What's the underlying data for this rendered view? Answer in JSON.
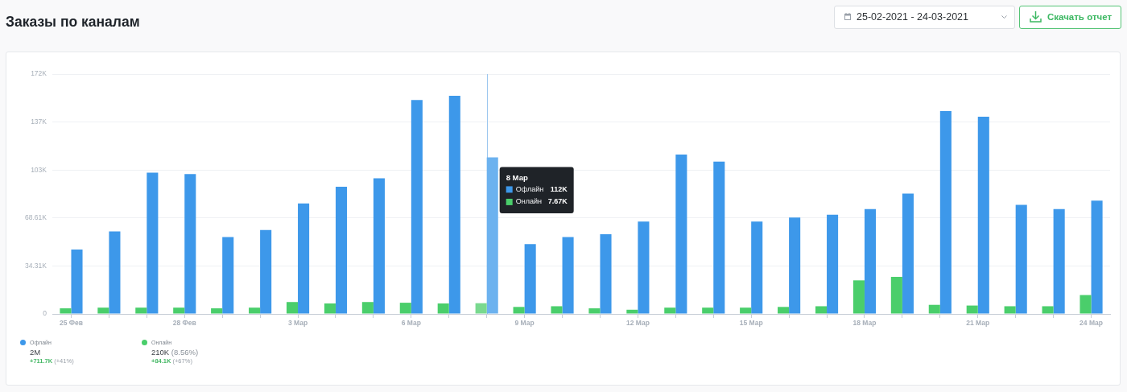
{
  "chart_data": {
    "type": "bar",
    "title": "Заказы по каналам",
    "x": [
      "2021-02-25",
      "2021-02-26",
      "2021-02-27",
      "2021-02-28",
      "2021-03-01",
      "2021-03-02",
      "2021-03-03",
      "2021-03-04",
      "2021-03-05",
      "2021-03-06",
      "2021-03-07",
      "2021-03-08",
      "2021-03-09",
      "2021-03-10",
      "2021-03-11",
      "2021-03-12",
      "2021-03-13",
      "2021-03-14",
      "2021-03-15",
      "2021-03-16",
      "2021-03-17",
      "2021-03-18",
      "2021-03-19",
      "2021-03-20",
      "2021-03-21",
      "2021-03-22",
      "2021-03-23",
      "2021-03-24"
    ],
    "xlim": [
      "2021-02-24T12:00",
      "2021-03-24T12:00"
    ],
    "xticks": [
      {
        "value": "2021-02-25",
        "label": "25 Фев"
      },
      {
        "value": "2021-02-26",
        "label": null
      },
      {
        "value": "2021-02-27",
        "label": null
      },
      {
        "value": "2021-02-28",
        "label": "28 Фев"
      },
      {
        "value": "2021-03-01",
        "label": null
      },
      {
        "value": "2021-03-02",
        "label": null
      },
      {
        "value": "2021-03-03",
        "label": "3 Мар"
      },
      {
        "value": "2021-03-04",
        "label": null
      },
      {
        "value": "2021-03-05",
        "label": null
      },
      {
        "value": "2021-03-06",
        "label": "6 Мар"
      },
      {
        "value": "2021-03-07",
        "label": null
      },
      {
        "value": "2021-03-08",
        "label": null
      },
      {
        "value": "2021-03-09",
        "label": "9 Мар"
      },
      {
        "value": "2021-03-10",
        "label": null
      },
      {
        "value": "2021-03-11",
        "label": null
      },
      {
        "value": "2021-03-12",
        "label": "12 Мар"
      },
      {
        "value": "2021-03-13",
        "label": null
      },
      {
        "value": "2021-03-14",
        "label": null
      },
      {
        "value": "2021-03-15",
        "label": "15 Мар"
      },
      {
        "value": "2021-03-16",
        "label": null
      },
      {
        "value": "2021-03-17",
        "label": null
      },
      {
        "value": "2021-03-18",
        "label": "18 Мар"
      },
      {
        "value": "2021-03-19",
        "label": null
      },
      {
        "value": "2021-03-20",
        "label": null
      },
      {
        "value": "2021-03-21",
        "label": "21 Мар"
      },
      {
        "value": "2021-03-22",
        "label": null
      },
      {
        "value": "2021-03-23",
        "label": null
      },
      {
        "value": "2021-03-24",
        "label": "24 Мар"
      }
    ],
    "ylim": [
      0,
      171530
    ],
    "yticks": [
      0,
      {
        "value": 34306,
        "label": "34.31K"
      },
      {
        "value": 68612,
        "label": "68.61K"
      },
      {
        "value": 102918,
        "label": "103K"
      },
      {
        "value": 137224,
        "label": "137K"
      },
      {
        "value": 171530,
        "label": "172K"
      }
    ],
    "series": [
      {
        "name": "Офлайн",
        "color": "#3d98ea",
        "colors": [
          "#3d98ea",
          "#3d98ea",
          "#3d98ea",
          "#3d98ea",
          "#3d98ea",
          "#3d98ea",
          "#3d98ea",
          "#3d98ea",
          "#3d98ea",
          "#3d98ea",
          "#3d98ea",
          "#6cb2ef",
          "#3d98ea",
          "#3d98ea",
          "#3d98ea",
          "#3d98ea",
          "#3d98ea",
          "#3d98ea",
          "#3d98ea",
          "#3d98ea",
          "#3d98ea",
          "#3d98ea",
          "#3d98ea",
          "#3d98ea",
          "#3d98ea",
          "#3d98ea",
          "#3d98ea",
          "#3d98ea"
        ],
        "values": [
          46000,
          59000,
          101000,
          100000,
          55000,
          60000,
          79000,
          91000,
          97000,
          153000,
          156000,
          112000,
          50000,
          55000,
          57000,
          66000,
          114000,
          109000,
          66000,
          69000,
          71000,
          75000,
          86000,
          145000,
          141000,
          78000,
          75000,
          81000
        ]
      },
      {
        "name": "Онлайн",
        "color": "#4ace6b",
        "colors": [
          "#4ace6b",
          "#4ace6b",
          "#4ace6b",
          "#4ace6b",
          "#4ace6b",
          "#4ace6b",
          "#4ace6b",
          "#4ace6b",
          "#4ace6b",
          "#4ace6b",
          "#4ace6b",
          "#79d98f",
          "#4ace6b",
          "#4ace6b",
          "#4ace6b",
          "#4ace6b",
          "#4ace6b",
          "#4ace6b",
          "#4ace6b",
          "#4ace6b",
          "#4ace6b",
          "#4ace6b",
          "#4ace6b",
          "#4ace6b",
          "#4ace6b",
          "#4ace6b",
          "#4ace6b",
          "#4ace6b"
        ],
        "values": [
          4000,
          4500,
          4500,
          4500,
          4000,
          4500,
          8500,
          7500,
          8500,
          8000,
          7500,
          7670,
          5000,
          5500,
          4000,
          3000,
          4500,
          4500,
          4500,
          5000,
          5500,
          24000,
          26500,
          6500,
          6000,
          5500,
          5500,
          13500
        ]
      }
    ],
    "ref_lines": [
      {
        "axis": "x",
        "value": "2021-03-08",
        "color": "#9cc7ef"
      }
    ],
    "annotations": [
      "25-02-2021 - 24-03-2021",
      "Скачать отчет",
      "8 Мар",
      "112K",
      "7.67K",
      "2M",
      "+711.7K (+41%)",
      "210K (8.56%)",
      "+84.1K (+67%)"
    ],
    "grid": "y",
    "legend": "bottom left"
  }
}
